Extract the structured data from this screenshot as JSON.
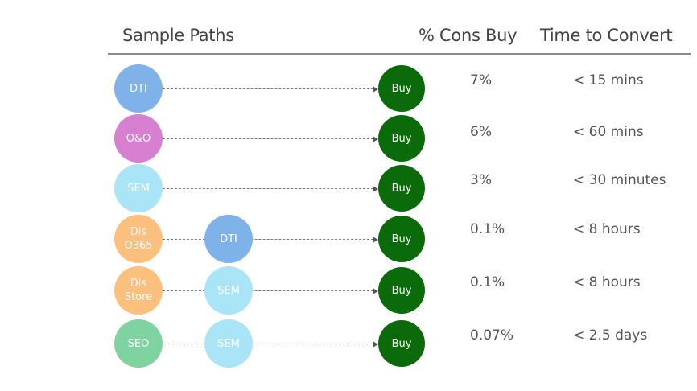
{
  "headers": {
    "paths": "Sample Paths",
    "pct": "% Cons Buy",
    "time": "Time to Convert"
  },
  "colors": {
    "DTI": "#7fb2e8",
    "O&O": "#d77fd0",
    "SEM": "#a9e4f7",
    "Dis": "#fbbf7e",
    "SEO": "#7fd3a0",
    "Buy": "#0b6b0b"
  },
  "rows": [
    {
      "nodes": [
        "DTI"
      ],
      "buy": "Buy",
      "pct": "7%",
      "time": "< 15 mins"
    },
    {
      "nodes": [
        "O&O"
      ],
      "buy": "Buy",
      "pct": "6%",
      "time": "< 60 mins"
    },
    {
      "nodes": [
        "SEM"
      ],
      "buy": "Buy",
      "pct": "3%",
      "time": "< 30 minutes"
    },
    {
      "nodes": [
        "Dis\nO365",
        "DTI"
      ],
      "buy": "Buy",
      "pct": "0.1%",
      "time": "< 8 hours"
    },
    {
      "nodes": [
        "Dis\nStore",
        "SEM"
      ],
      "buy": "Buy",
      "pct": "0.1%",
      "time": "< 8 hours"
    },
    {
      "nodes": [
        "SEO",
        "SEM"
      ],
      "buy": "Buy",
      "pct": "0.07%",
      "time": "< 2.5 days"
    }
  ]
}
